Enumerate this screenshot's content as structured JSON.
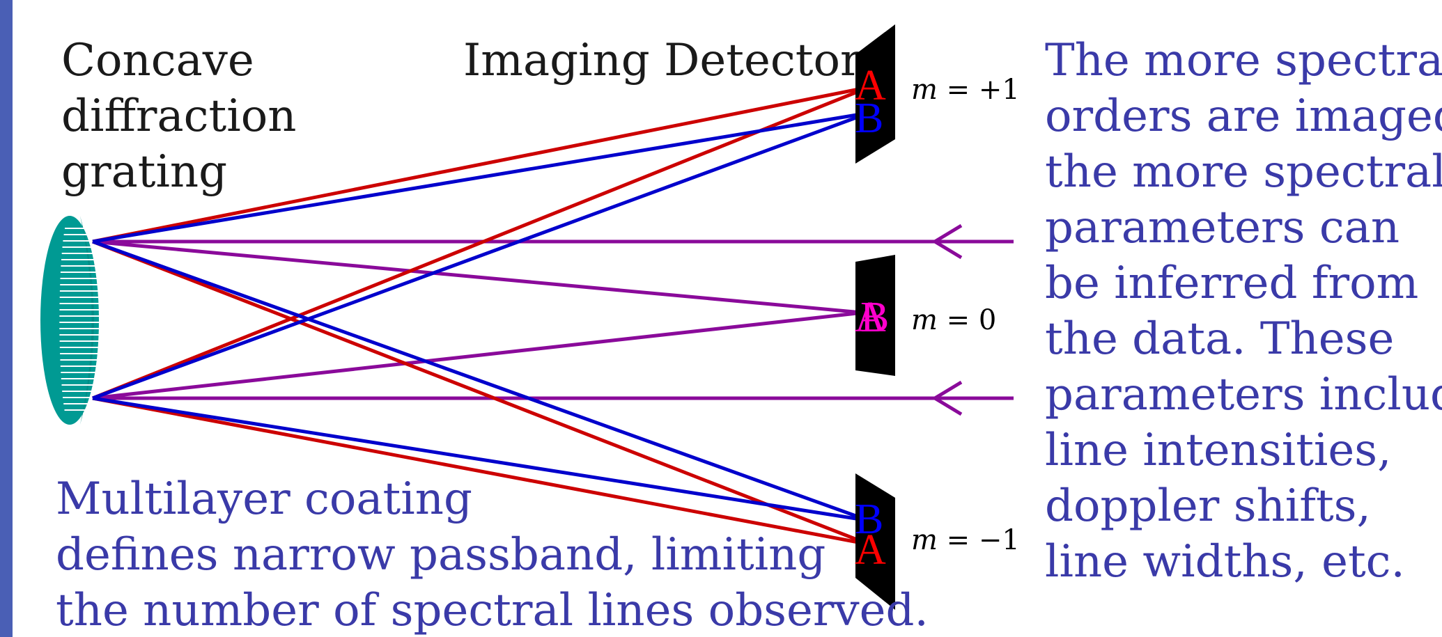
{
  "grating_label": [
    "Concave",
    "diffraction",
    "grating"
  ],
  "detectors_label": "Imaging Detectors",
  "coating_label": [
    "Multilayer coating",
    "defines narrow passband, limiting",
    "the number of spectral lines observed."
  ],
  "orders": {
    "plus": {
      "m": "m",
      "eq": " = +1"
    },
    "zero": {
      "m": "m",
      "eq": " = 0"
    },
    "minus": {
      "m": "m",
      "eq": " = −1"
    }
  },
  "line_labels": {
    "a": "A",
    "b": "B"
  },
  "explanation": [
    "The more spectral",
    "orders are imaged,",
    "the more spectral",
    "parameters can",
    "be inferred from",
    "the data. These",
    "parameters include",
    "line intensities,",
    "doppler shifts,",
    "line widths, etc."
  ],
  "colors": {
    "left_bar": "#4a5fb5",
    "grating": "#009a93",
    "ray_a": "#cc0000",
    "ray_b": "#0000cc",
    "ray_incident": "#8a0a9a",
    "detector": "#000000",
    "label_a": "#ff0000",
    "label_b": "#0000ff",
    "label_zero": "#ff00cc",
    "text_blue": "#3a3aa8"
  }
}
